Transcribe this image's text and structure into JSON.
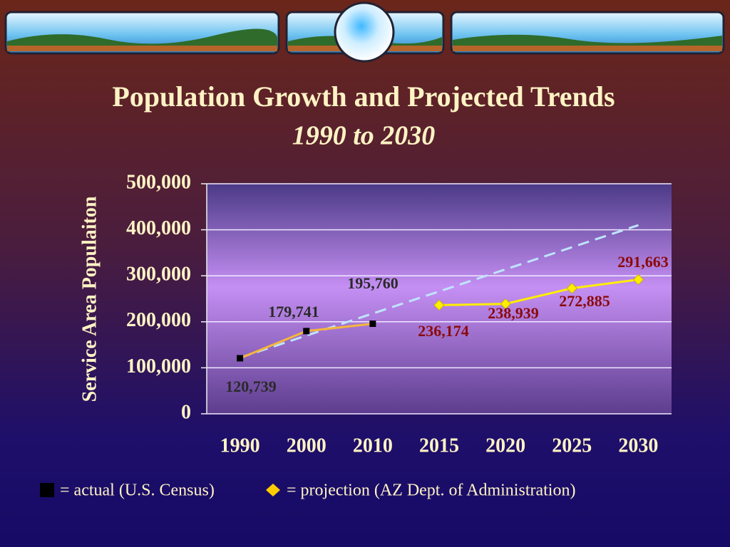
{
  "chart_data": {
    "type": "line",
    "title": "Population Growth and Projected Trends",
    "subtitle": "1990 to 2030",
    "y_label": "Service Area Populaiton",
    "categories": [
      "1990",
      "2000",
      "2010",
      "2015",
      "2020",
      "2025",
      "2030"
    ],
    "series": [
      {
        "name": "= actual (U.S. Census)",
        "color": "#000000",
        "line_color": "#f5b63a",
        "marker": "square",
        "values": [
          120739,
          179741,
          195760,
          null,
          null,
          null,
          null
        ],
        "value_labels": [
          "120,739",
          "179,741",
          "195,760",
          null,
          null,
          null,
          null
        ]
      },
      {
        "name": "= projection (AZ Dept. of Administration)",
        "color": "#ffee00",
        "line_color": "#ffee00",
        "marker": "diamond",
        "values": [
          null,
          null,
          null,
          236174,
          238939,
          272885,
          291663
        ],
        "value_labels": [
          null,
          null,
          null,
          "236,174",
          "238,939",
          "272,885",
          "291,663"
        ]
      }
    ],
    "trendline": {
      "color": "#bfe4ff",
      "values": [
        122000,
        410000
      ]
    },
    "ylim": [
      0,
      500000
    ],
    "yticks": [
      0,
      {
        "value": 100000,
        "label": "100,000"
      },
      {
        "value": 200000,
        "label": "200,000"
      },
      {
        "value": 300000,
        "label": "300,000"
      },
      {
        "value": 400000,
        "label": "400,000"
      },
      {
        "value": 500000,
        "label": "500,000"
      }
    ],
    "grid": true
  }
}
